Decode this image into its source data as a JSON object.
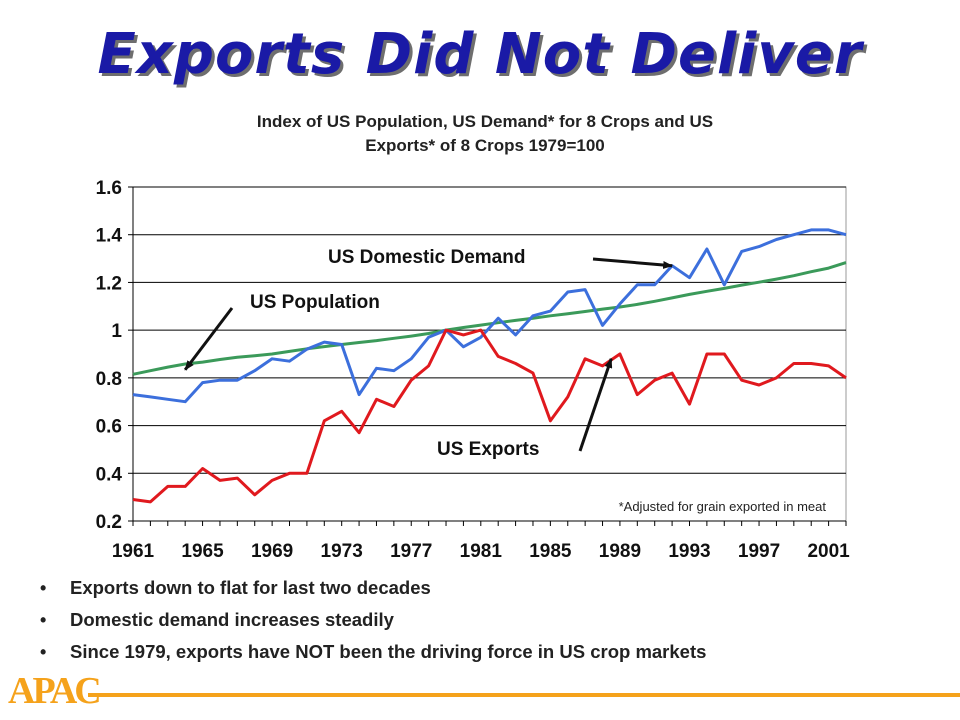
{
  "slide": {
    "title": "Exports Did Not Deliver",
    "bullets": [
      "Exports down to flat for last two decades",
      "Domestic demand increases steadily",
      "Since 1979, exports have NOT been the driving force in US crop markets"
    ],
    "logo": "APAC",
    "accent_color": "#f5a21b",
    "title_color": "#1a1aa6"
  },
  "chart_data": {
    "type": "line",
    "title_lines": [
      "Index of US Population, US Demand* for 8 Crops and US",
      "Exports* of 8 Crops    1979=100"
    ],
    "footnote": "*Adjusted for grain exported in meat",
    "xlim": [
      1961,
      2002
    ],
    "ylim": [
      0.2,
      1.6
    ],
    "x_ticks": [
      1961,
      1965,
      1969,
      1973,
      1977,
      1981,
      1985,
      1989,
      1993,
      1997,
      2001
    ],
    "y_ticks": [
      0.2,
      0.4,
      0.6,
      0.8,
      1,
      1.2,
      1.4,
      1.6
    ],
    "y_tick_labels": [
      "0.2",
      "0.4",
      "0.6",
      "0.8",
      "1",
      "1.2",
      "1.4",
      "1.6"
    ],
    "grid": "horizontal",
    "x": [
      1961,
      1962,
      1963,
      1964,
      1965,
      1966,
      1967,
      1968,
      1969,
      1970,
      1971,
      1972,
      1973,
      1974,
      1975,
      1976,
      1977,
      1978,
      1979,
      1980,
      1981,
      1982,
      1983,
      1984,
      1985,
      1986,
      1987,
      1988,
      1989,
      1990,
      1991,
      1992,
      1993,
      1994,
      1995,
      1996,
      1997,
      1998,
      1999,
      2000,
      2001,
      2002
    ],
    "series": [
      {
        "name": "US Domestic Demand",
        "color": "#3c6fdc",
        "values": [
          0.73,
          0.72,
          0.71,
          0.7,
          0.78,
          0.79,
          0.79,
          0.83,
          0.88,
          0.87,
          0.92,
          0.95,
          0.94,
          0.73,
          0.84,
          0.83,
          0.88,
          0.97,
          1.0,
          0.93,
          0.97,
          1.05,
          0.98,
          1.06,
          1.08,
          1.16,
          1.17,
          1.02,
          1.11,
          1.19,
          1.19,
          1.27,
          1.22,
          1.34,
          1.19,
          1.33,
          1.35,
          1.38,
          1.4,
          1.42,
          1.42,
          1.4
        ]
      },
      {
        "name": "US Population",
        "color": "#3b9a5a",
        "values": [
          0.815,
          0.83,
          0.845,
          0.858,
          0.866,
          0.877,
          0.886,
          0.893,
          0.9,
          0.911,
          0.922,
          0.931,
          0.94,
          0.948,
          0.956,
          0.966,
          0.975,
          0.986,
          1.0,
          1.011,
          1.021,
          1.031,
          1.041,
          1.05,
          1.06,
          1.069,
          1.078,
          1.088,
          1.097,
          1.108,
          1.121,
          1.135,
          1.15,
          1.163,
          1.175,
          1.189,
          1.201,
          1.214,
          1.228,
          1.245,
          1.26,
          1.283
        ]
      },
      {
        "name": "US Exports",
        "color": "#e0191e",
        "values": [
          0.29,
          0.28,
          0.345,
          0.345,
          0.42,
          0.37,
          0.38,
          0.31,
          0.37,
          0.4,
          0.4,
          0.62,
          0.66,
          0.57,
          0.71,
          0.68,
          0.79,
          0.85,
          1.0,
          0.98,
          1.0,
          0.89,
          0.86,
          0.82,
          0.62,
          0.72,
          0.88,
          0.85,
          0.9,
          0.73,
          0.79,
          0.82,
          0.69,
          0.9,
          0.9,
          0.79,
          0.77,
          0.8,
          0.86,
          0.86,
          0.85,
          0.8
        ]
      }
    ],
    "annotations": [
      {
        "text": "US Domestic Demand",
        "series": "US Domestic Demand",
        "point_x": 1992,
        "point_y": 1.27
      },
      {
        "text": "US Population",
        "series": "US Population",
        "point_x": 1964,
        "point_y": 0.855
      },
      {
        "text": "US Exports",
        "series": "US Exports",
        "point_x": 1988.5,
        "point_y": 0.88
      }
    ]
  }
}
